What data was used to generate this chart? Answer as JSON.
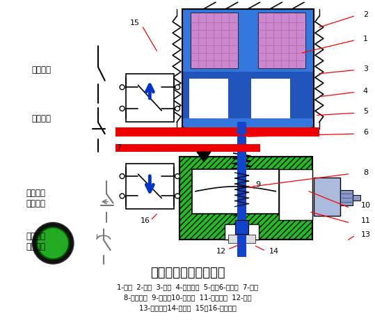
{
  "title": "通电延时型时间继电器",
  "caption_lines": [
    "1-线圈  2-铁心  3-衔铁  4-反力弹簧  5-推板6-活塞杆  7-杠杆",
    "8-塔形弹簧  9-弱弹簧10-橡皮膜  11-空气室壁  12-活塞",
    "13-调节螺杆14-进气孔  15、16-微动开关"
  ],
  "bg_color": "#ffffff",
  "label_instant_open": "瞬动常开",
  "label_instant_close": "瞬动常闭",
  "label_delay_open": "延时断开\n常闭触头",
  "label_delay_close": "延时闭合\n常开触头",
  "blue_body_color": "#3377dd",
  "blue_dark_color": "#2255bb",
  "coil_color": "#cc88cc",
  "green_color": "#22bb22",
  "rod_color": "#1144cc",
  "red_bar_color": "#ee0000"
}
